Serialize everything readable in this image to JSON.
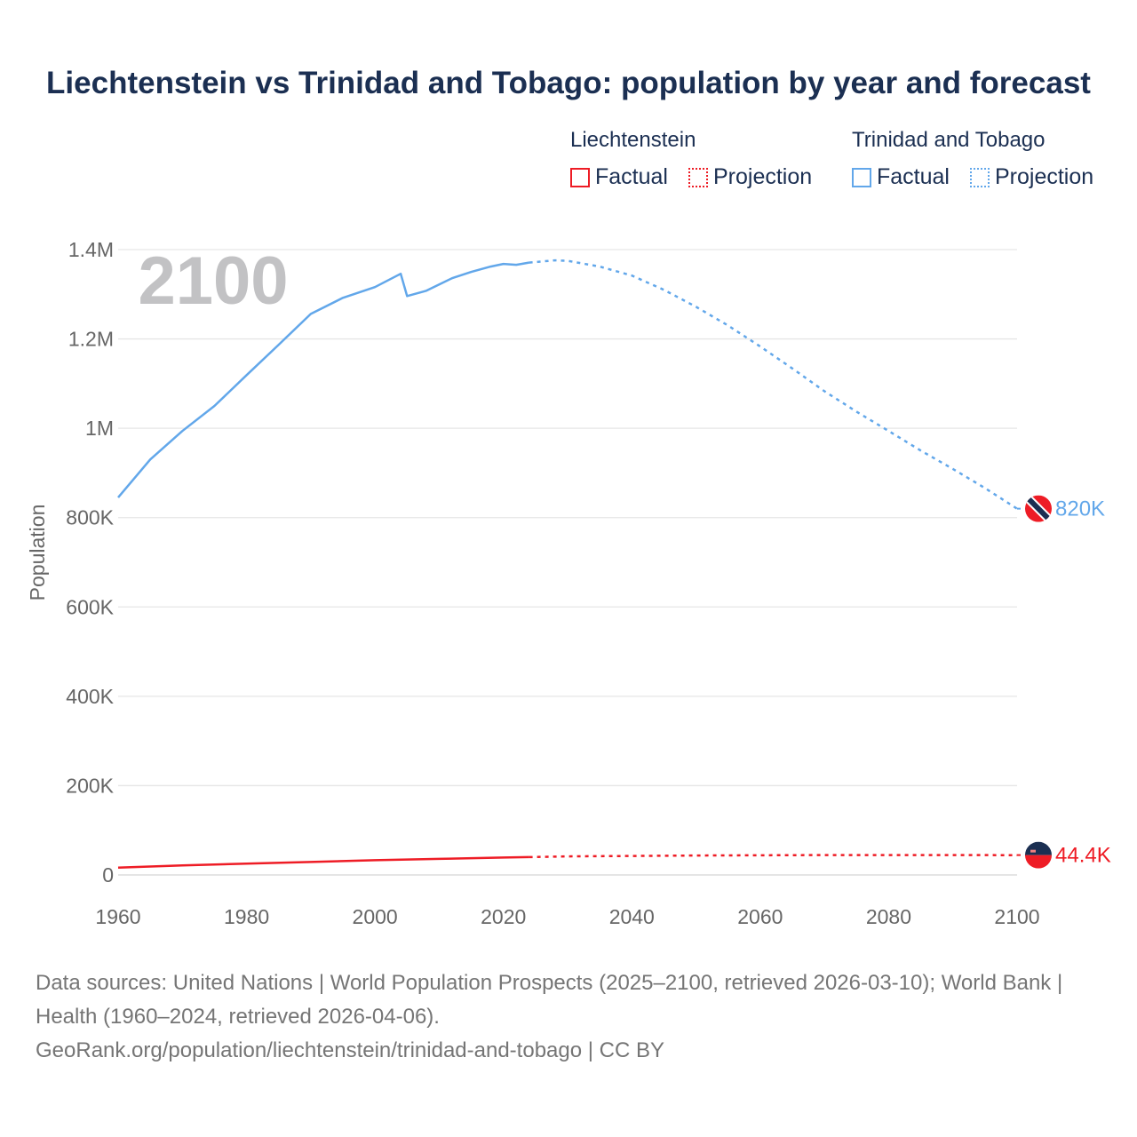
{
  "title": "Liechtenstein vs Trinidad and Tobago: population by year and forecast",
  "legend": {
    "groups": [
      {
        "name": "Liechtenstein",
        "color": "#ee1c25",
        "factual": "Factual",
        "projection": "Projection"
      },
      {
        "name": "Trinidad and Tobago",
        "color": "#62a7ea",
        "factual": "Factual",
        "projection": "Projection"
      }
    ]
  },
  "year_watermark": "2100",
  "footer": {
    "sources": "Data sources: United Nations | World Population Prospects (2025–2100, retrieved 2026-03-10); World Bank | Health (1960–2024, retrieved 2026-04-06).",
    "attribution": "GeoRank.org/population/liechtenstein/trinidad-and-tobago | CC BY"
  },
  "chart_data": {
    "type": "line",
    "title": "Liechtenstein vs Trinidad and Tobago: population by year and forecast",
    "xlabel": "",
    "ylabel": "Population",
    "xlim": [
      1960,
      2100
    ],
    "ylim": [
      0,
      1400000
    ],
    "x_ticks": [
      1960,
      1980,
      2000,
      2020,
      2040,
      2060,
      2080,
      2100
    ],
    "x_tick_labels": [
      "1960",
      "1980",
      "2000",
      "2020",
      "2040",
      "2060",
      "2080",
      "2100"
    ],
    "y_ticks": [
      0,
      200000,
      400000,
      600000,
      800000,
      1000000,
      1200000,
      1400000
    ],
    "y_tick_labels": [
      "0",
      "200K",
      "400K",
      "600K",
      "800K",
      "1M",
      "1.2M",
      "1.4M"
    ],
    "grid": true,
    "legend_position": "top-right",
    "series": [
      {
        "name": "Trinidad and Tobago",
        "color": "#62a7ea",
        "end_label": "820K",
        "factual": {
          "x": [
            1960,
            1965,
            1970,
            1975,
            1980,
            1985,
            1990,
            1995,
            2000,
            2004,
            2005,
            2008,
            2010,
            2012,
            2015,
            2018,
            2020,
            2022,
            2024
          ],
          "y": [
            845000,
            930000,
            994000,
            1050000,
            1119000,
            1187000,
            1256000,
            1292000,
            1316000,
            1346000,
            1296000,
            1308000,
            1322000,
            1336000,
            1350000,
            1362000,
            1368000,
            1366000,
            1371000
          ]
        },
        "projection": {
          "x": [
            2024,
            2028,
            2030,
            2035,
            2040,
            2045,
            2050,
            2055,
            2060,
            2065,
            2070,
            2075,
            2080,
            2085,
            2090,
            2095,
            2100
          ],
          "y": [
            1371000,
            1376000,
            1375000,
            1362000,
            1342000,
            1310000,
            1272000,
            1230000,
            1183000,
            1134000,
            1083000,
            1037000,
            994000,
            950000,
            909000,
            866000,
            820000
          ]
        }
      },
      {
        "name": "Liechtenstein",
        "color": "#ee1c25",
        "end_label": "44.4K",
        "factual": {
          "x": [
            1960,
            1970,
            1980,
            1990,
            2000,
            2010,
            2020,
            2024
          ],
          "y": [
            16600,
            21400,
            25500,
            29000,
            33000,
            36000,
            39000,
            39900
          ]
        },
        "projection": {
          "x": [
            2024,
            2030,
            2050,
            2070,
            2100
          ],
          "y": [
            39900,
            41500,
            43500,
            44500,
            44400
          ]
        }
      }
    ]
  }
}
